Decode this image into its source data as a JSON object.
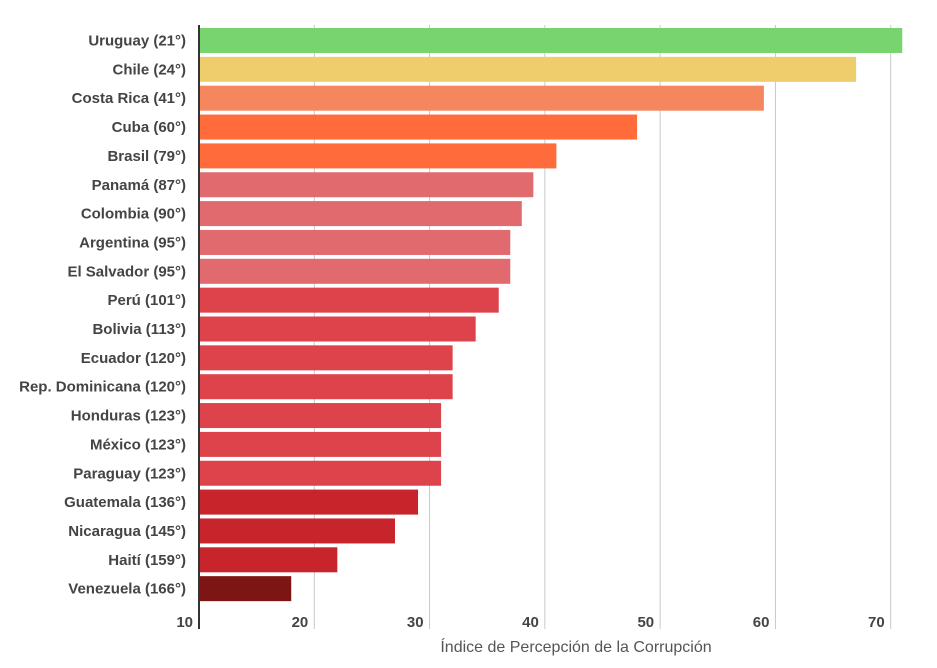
{
  "chart_data": {
    "type": "bar",
    "orientation": "horizontal",
    "xlabel": "Índice de Percepción de la Corrupción",
    "xlim": [
      10,
      71.5
    ],
    "xticks": [
      10,
      20,
      30,
      40,
      50,
      60,
      70
    ],
    "grid": true,
    "categories": [
      "Uruguay (21°)",
      "Chile (24°)",
      "Costa Rica (41°)",
      "Cuba (60°)",
      "Brasil (79°)",
      "Panamá (87°)",
      "Colombia (90°)",
      "Argentina (95°)",
      "El Salvador (95°)",
      "Perú (101°)",
      "Bolivia (113°)",
      "Ecuador (120°)",
      "Rep. Dominicana (120°)",
      "Honduras (123°)",
      "México (123°)",
      "Paraguay (123°)",
      "Guatemala (136°)",
      "Nicaragua (145°)",
      "Haití (159°)",
      "Venezuela (166°)"
    ],
    "values": [
      71,
      67,
      59,
      48,
      41,
      39,
      38,
      37,
      37,
      36,
      34,
      32,
      32,
      31,
      31,
      31,
      29,
      27,
      22,
      18
    ],
    "colors": [
      "#77d46f",
      "#efcc6c",
      "#f5875f",
      "#ff6b3a",
      "#ff6b3a",
      "#e06a6e",
      "#e06a6e",
      "#e06a6e",
      "#e06a6e",
      "#dc434b",
      "#dc434b",
      "#dc434b",
      "#dc434b",
      "#dc434b",
      "#dc434b",
      "#dc434b",
      "#c7242b",
      "#c7242b",
      "#c7242b",
      "#7e1515"
    ]
  }
}
